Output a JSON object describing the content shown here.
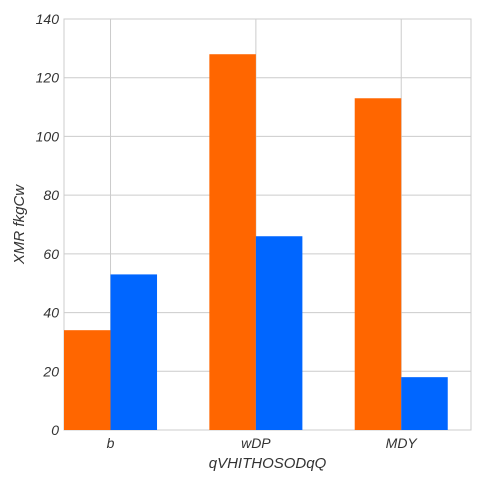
{
  "chart_data": {
    "type": "bar",
    "title": "",
    "xlabel": "qVHITHOSODqQ",
    "ylabel": "XMR fkgCw",
    "categories": [
      "b",
      "wDP",
      "MDY"
    ],
    "series": [
      {
        "values": [
          34,
          128,
          113
        ],
        "color": "#ff6600"
      },
      {
        "values": [
          53,
          66,
          18
        ],
        "color": "#0066ff"
      }
    ],
    "ylim": [
      0,
      140
    ],
    "yticks": [
      0,
      20,
      40,
      60,
      80,
      100,
      120,
      140
    ],
    "grid": true,
    "legend": "none"
  }
}
